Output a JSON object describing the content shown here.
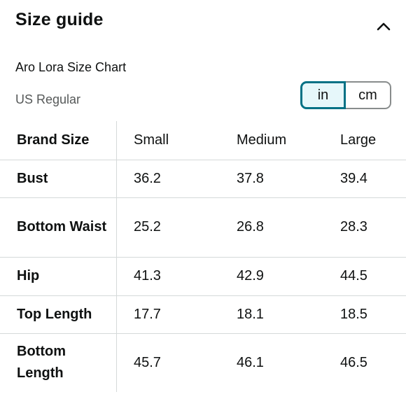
{
  "header": {
    "title": "Size guide",
    "collapse_icon": "chevron-up-icon"
  },
  "chart": {
    "name": "Aro Lora Size Chart",
    "region": "US Regular"
  },
  "units": {
    "options": [
      "in",
      "cm"
    ],
    "selected": "in"
  },
  "colors": {
    "accent": "#007185",
    "selected_bg": "#e6f7fa",
    "secondary_text": "#565959",
    "divider": "#d5d9d9"
  },
  "table": {
    "header": [
      "Brand Size",
      "Small",
      "Medium",
      "Large"
    ],
    "rows": [
      {
        "label": "Bust",
        "values": [
          "36.2",
          "37.8",
          "39.4"
        ]
      },
      {
        "label": "Bottom Waist",
        "values": [
          "25.2",
          "26.8",
          "28.3"
        ]
      },
      {
        "label": "Hip",
        "values": [
          "41.3",
          "42.9",
          "44.5"
        ]
      },
      {
        "label": "Top Length",
        "values": [
          "17.7",
          "18.1",
          "18.5"
        ]
      },
      {
        "label": "Bottom Length",
        "values": [
          "45.7",
          "46.1",
          "46.5"
        ]
      }
    ]
  }
}
